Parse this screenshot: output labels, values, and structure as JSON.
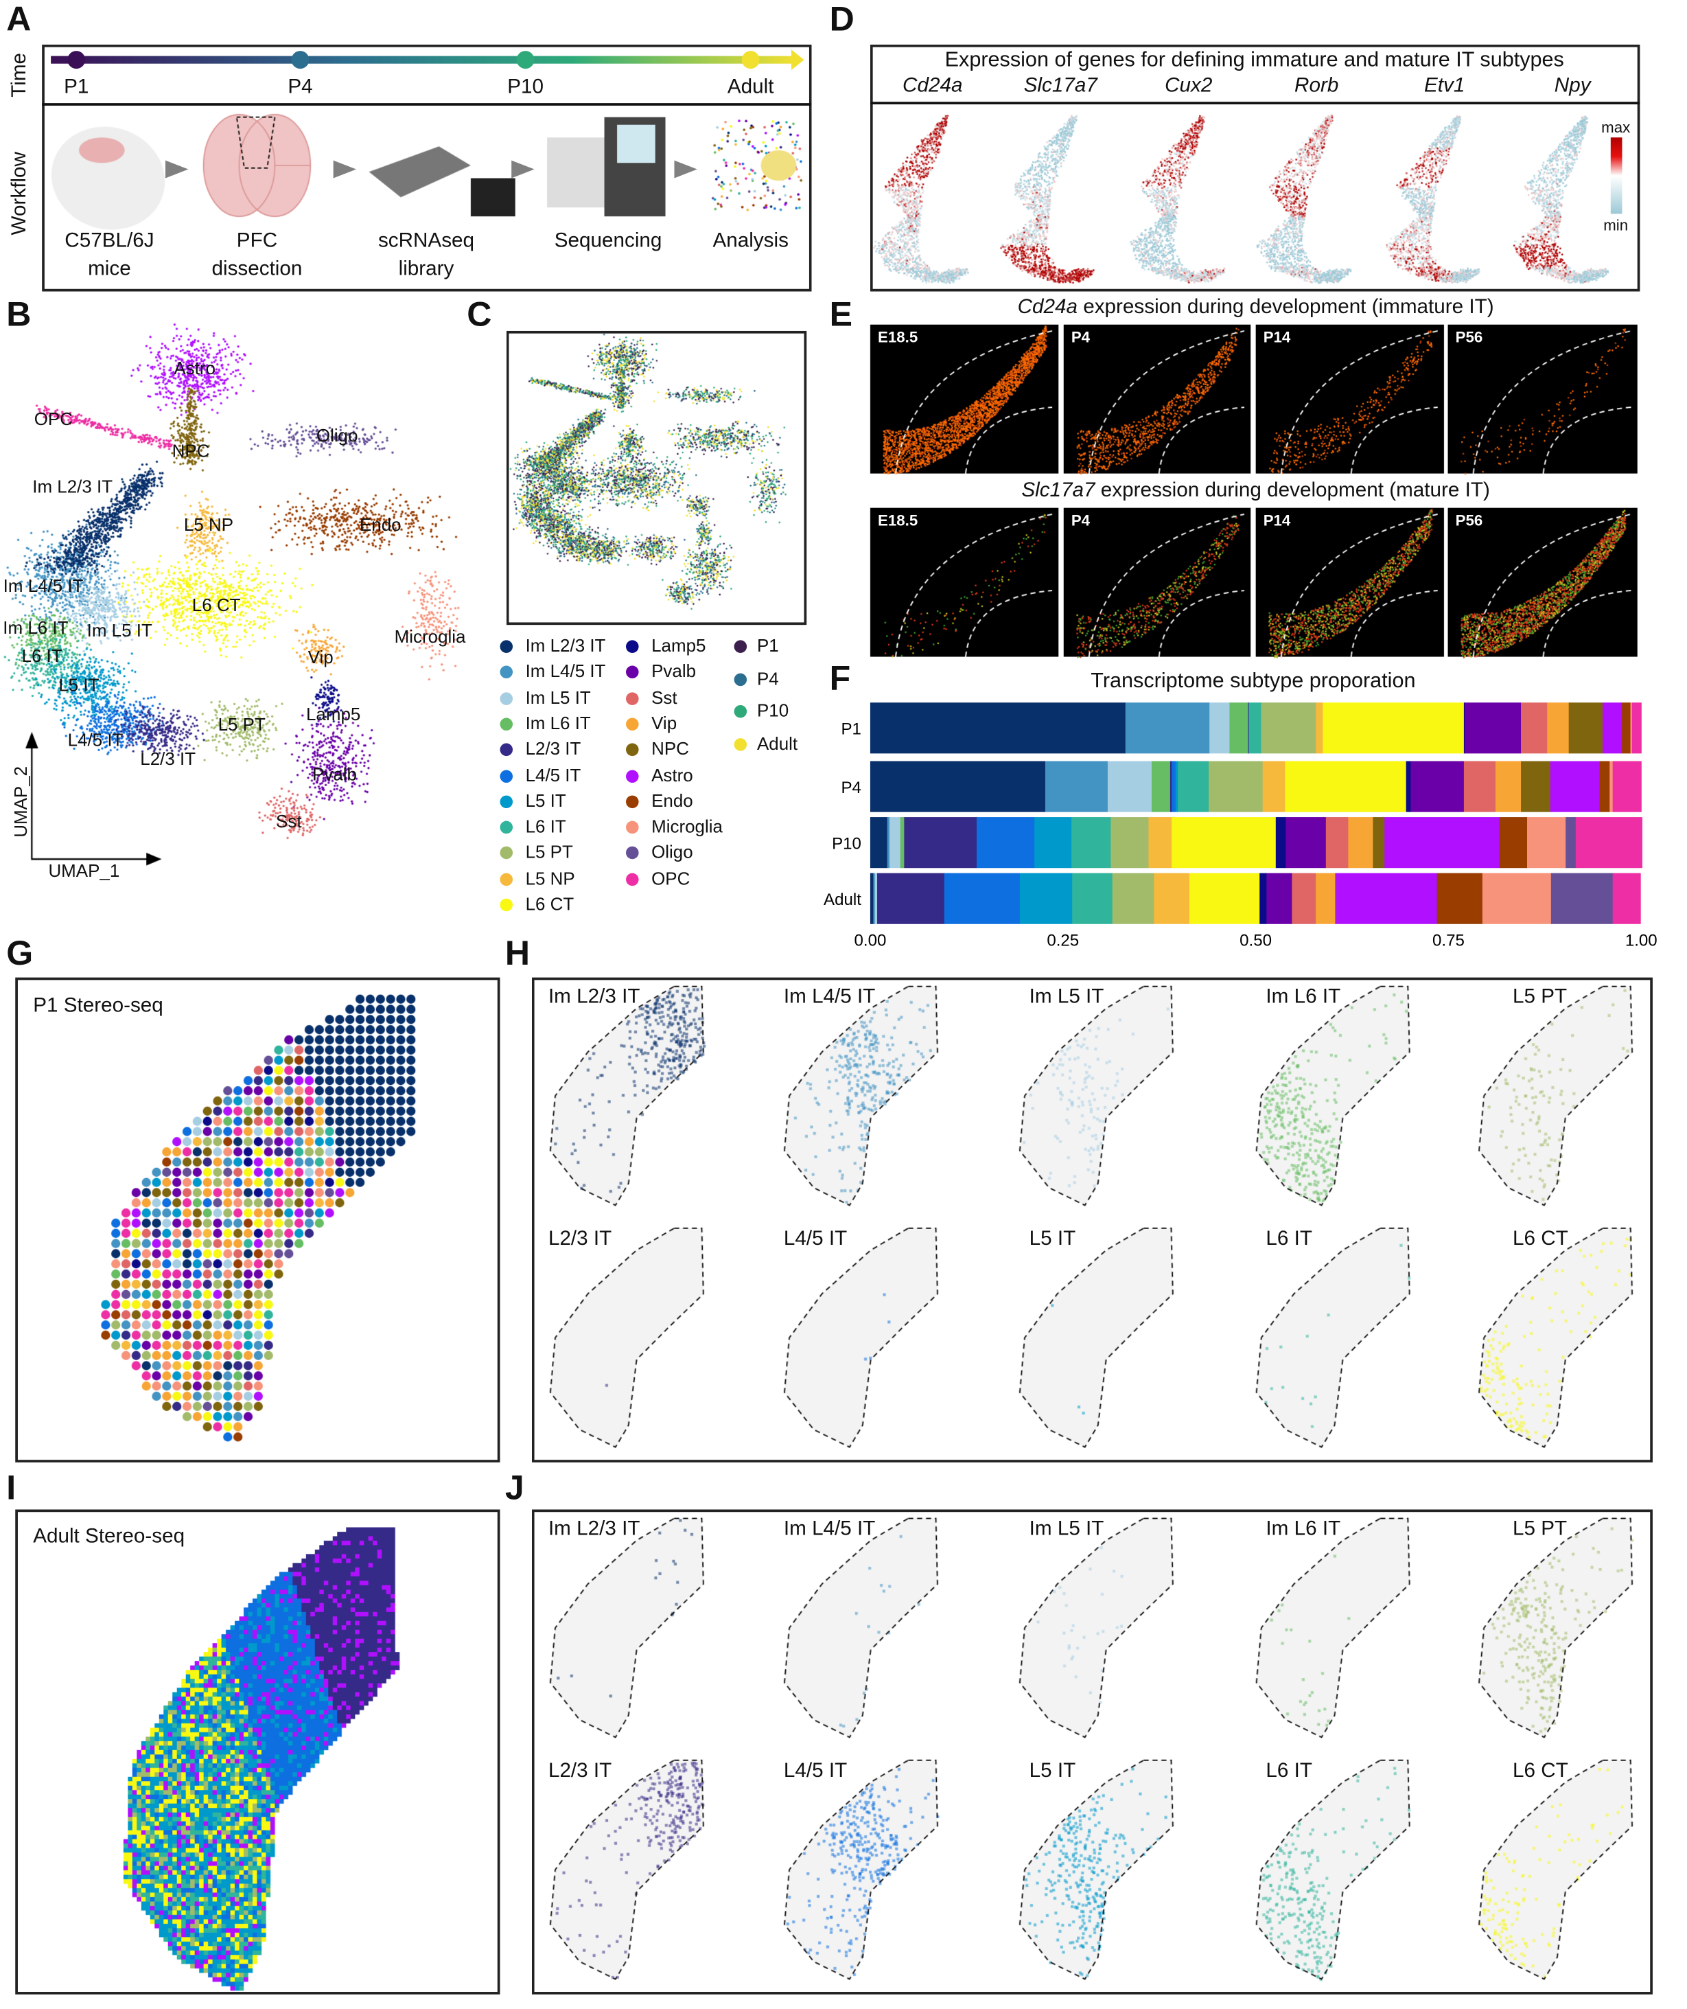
{
  "panel_letters": [
    "A",
    "B",
    "C",
    "D",
    "E",
    "F",
    "G",
    "H",
    "I",
    "J"
  ],
  "panel_a": {
    "row_labels": {
      "time": "Time",
      "workflow": "Workflow"
    },
    "timepoints": [
      {
        "label": "P1",
        "color": "#3b0f55"
      },
      {
        "label": "P4",
        "color": "#2c6e8f"
      },
      {
        "label": "P10",
        "color": "#2eaa7a"
      },
      {
        "label": "Adult",
        "color": "#f2e030"
      }
    ],
    "steps": [
      {
        "line1": "C57BL/6J",
        "line2": "mice",
        "icon": "mouse-icon"
      },
      {
        "line1": "PFC",
        "line2": "dissection",
        "icon": "brain-section-icon"
      },
      {
        "line1": "scRNAseq",
        "line2": "library",
        "icon": "microfluidic-chip-icon"
      },
      {
        "line1": "Sequencing",
        "line2": "",
        "icon": "sequencer-icon"
      },
      {
        "line1": "Analysis",
        "line2": "",
        "icon": "umap-analysis-icon"
      }
    ]
  },
  "panel_b": {
    "axis_x": "UMAP_1",
    "axis_y": "UMAP_2",
    "cluster_labels": [
      "Astro",
      "OPC",
      "NPC",
      "Oligo",
      "Im L2/3 IT",
      "L5 NP",
      "Endo",
      "Im L4/5 IT",
      "L6 CT",
      "Im L6 IT",
      "Im L5 IT",
      "Microglia",
      "L6 IT",
      "Vip",
      "L5 IT",
      "Lamp5",
      "L5 PT",
      "L4/5 IT",
      "L2/3 IT",
      "Pvalb",
      "Sst"
    ]
  },
  "panel_c": {
    "celltype_legend": [
      {
        "label": "Im L2/3 IT",
        "color": "#08306b"
      },
      {
        "label": "Im L4/5 IT",
        "color": "#4393c3"
      },
      {
        "label": "Im L5 IT",
        "color": "#a6cee3"
      },
      {
        "label": "Im L6 IT",
        "color": "#66bd63"
      },
      {
        "label": "L2/3 IT",
        "color": "#352a87"
      },
      {
        "label": "L4/5 IT",
        "color": "#0d6fe0"
      },
      {
        "label": "L5 IT",
        "color": "#0099cc"
      },
      {
        "label": "L6 IT",
        "color": "#30b49c"
      },
      {
        "label": "L5 PT",
        "color": "#a2bb6a"
      },
      {
        "label": "L5 NP",
        "color": "#f6b93b"
      },
      {
        "label": "L6 CT",
        "color": "#f8f812"
      },
      {
        "label": "Lamp5",
        "color": "#0b0b8a"
      },
      {
        "label": "Pvalb",
        "color": "#6a00a8"
      },
      {
        "label": "Sst",
        "color": "#e06666"
      },
      {
        "label": "Vip",
        "color": "#f7a535"
      },
      {
        "label": "NPC",
        "color": "#80650f"
      },
      {
        "label": "Astro",
        "color": "#b010ff"
      },
      {
        "label": "Endo",
        "color": "#993d00"
      },
      {
        "label": "Microglia",
        "color": "#f7937a"
      },
      {
        "label": "Oligo",
        "color": "#654f96"
      },
      {
        "label": "OPC",
        "color": "#ee2ea4"
      }
    ],
    "time_legend": [
      {
        "label": "P1",
        "color": "#3d1f4d"
      },
      {
        "label": "P4",
        "color": "#2c6e8f"
      },
      {
        "label": "P10",
        "color": "#2eaa7a"
      },
      {
        "label": "Adult",
        "color": "#f2e030"
      }
    ]
  },
  "panel_d": {
    "title": "Expression of genes for defining immature and mature IT subtypes",
    "genes": [
      "Cd24a",
      "Slc17a7",
      "Cux2",
      "Rorb",
      "Etv1",
      "Npy"
    ],
    "colorbar": {
      "max_label": "max",
      "min_label": "min",
      "max_color": "#b00000",
      "mid_color": "#ffffff",
      "min_color": "#9cc8d6"
    }
  },
  "panel_e": {
    "row1": {
      "gene": "Cd24a",
      "title_rest": " expression during development (immature IT)"
    },
    "row2": {
      "gene": "Slc17a7",
      "title_rest": " expression during development (mature IT)"
    },
    "stages": [
      "E18.5",
      "P4",
      "P14",
      "P56"
    ]
  },
  "chart_data": {
    "type": "bar",
    "orientation": "horizontal-stacked",
    "title": "Transcriptome subtype proporation",
    "categories": [
      "P1",
      "P4",
      "P10",
      "Adult"
    ],
    "xlim": [
      0,
      1
    ],
    "xticks": [
      "0.00",
      "0.25",
      "0.50",
      "0.75",
      "1.00"
    ],
    "series": [
      {
        "name": "Im L2/3 IT",
        "values": [
          0.331,
          0.227,
          0.022,
          0.004
        ]
      },
      {
        "name": "Im L4/5 IT",
        "values": [
          0.109,
          0.081,
          0.003,
          0.002
        ]
      },
      {
        "name": "Im L5 IT",
        "values": [
          0.026,
          0.057,
          0.014,
          0.003
        ]
      },
      {
        "name": "Im L6 IT",
        "values": [
          0.024,
          0.024,
          0.005,
          0.0
        ]
      },
      {
        "name": "L2/3 IT",
        "values": [
          0.001,
          0.002,
          0.094,
          0.087
        ]
      },
      {
        "name": "L4/5 IT",
        "values": [
          0.0,
          0.005,
          0.075,
          0.098
        ]
      },
      {
        "name": "L5 IT",
        "values": [
          0.0,
          0.003,
          0.048,
          0.068
        ]
      },
      {
        "name": "L6 IT",
        "values": [
          0.016,
          0.04,
          0.051,
          0.052
        ]
      },
      {
        "name": "L5 PT",
        "values": [
          0.071,
          0.07,
          0.049,
          0.054
        ]
      },
      {
        "name": "L5 NP",
        "values": [
          0.009,
          0.029,
          0.03,
          0.046
        ]
      },
      {
        "name": "L6 CT",
        "values": [
          0.183,
          0.157,
          0.135,
          0.091
        ]
      },
      {
        "name": "Lamp5",
        "values": [
          0.001,
          0.006,
          0.013,
          0.009
        ]
      },
      {
        "name": "Pvalb",
        "values": [
          0.073,
          0.069,
          0.052,
          0.033
        ]
      },
      {
        "name": "Sst",
        "values": [
          0.034,
          0.041,
          0.029,
          0.031
        ]
      },
      {
        "name": "Vip",
        "values": [
          0.028,
          0.033,
          0.032,
          0.025
        ]
      },
      {
        "name": "NPC",
        "values": [
          0.044,
          0.038,
          0.015,
          0.001
        ]
      },
      {
        "name": "Astro",
        "values": [
          0.025,
          0.064,
          0.149,
          0.131
        ]
      },
      {
        "name": "Endo",
        "values": [
          0.011,
          0.013,
          0.036,
          0.059
        ]
      },
      {
        "name": "Microglia",
        "values": [
          0.002,
          0.004,
          0.05,
          0.089
        ]
      },
      {
        "name": "Oligo",
        "values": [
          0.0,
          0.0,
          0.013,
          0.08
        ]
      },
      {
        "name": "OPC",
        "values": [
          0.012,
          0.037,
          0.086,
          0.036
        ]
      }
    ]
  },
  "panel_g": {
    "title": "P1 Stereo-seq"
  },
  "panel_h": {
    "cells": [
      "Im L2/3 IT",
      "Im L4/5 IT",
      "Im L5 IT",
      "Im L6 IT",
      "L5 PT",
      "L2/3 IT",
      "L4/5 IT",
      "L5 IT",
      "L6 IT",
      "L6 CT"
    ]
  },
  "panel_i": {
    "title": "Adult Stereo-seq"
  },
  "panel_j": {
    "cells": [
      "Im L2/3 IT",
      "Im L4/5 IT",
      "Im L5 IT",
      "Im L6 IT",
      "L5 PT",
      "L2/3 IT",
      "L4/5 IT",
      "L5 IT",
      "L6 IT",
      "L6 CT"
    ]
  }
}
